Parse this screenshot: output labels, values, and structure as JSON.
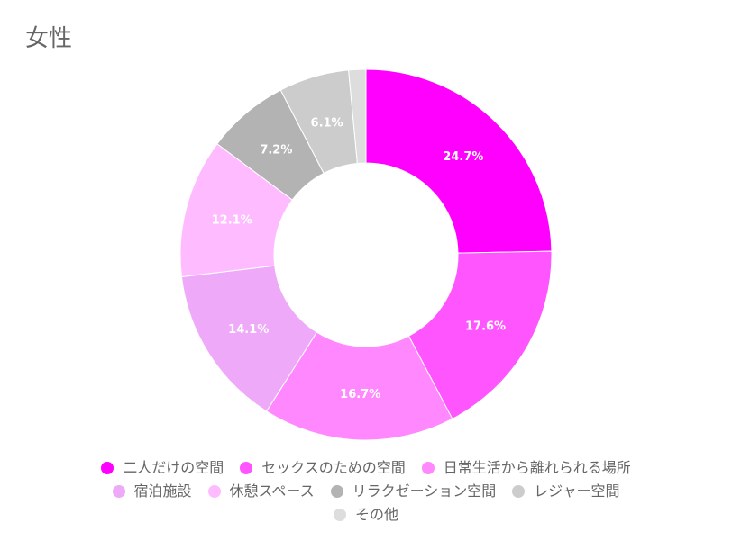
{
  "chart_data": {
    "type": "pie",
    "title": "女性",
    "donut": true,
    "legend_position": "bottom",
    "categories": [
      "二人だけの空間",
      "セックスのための空間",
      "日常生活から離れられる場所",
      "宿泊施設",
      "休憩スペース",
      "リラクゼーション空間",
      "レジャー空間",
      "その他"
    ],
    "values": [
      24.7,
      17.6,
      16.7,
      14.1,
      12.1,
      7.2,
      6.1,
      1.5
    ],
    "labels": [
      "24.7%",
      "17.6%",
      "16.7%",
      "14.1%",
      "12.1%",
      "7.2%",
      "6.1%",
      ""
    ],
    "colors": [
      "#ff00ff",
      "#ff55ff",
      "#ff88ff",
      "#eeaaf8",
      "#ffbbff",
      "#b3b3b3",
      "#cccccc",
      "#dddddd"
    ]
  }
}
